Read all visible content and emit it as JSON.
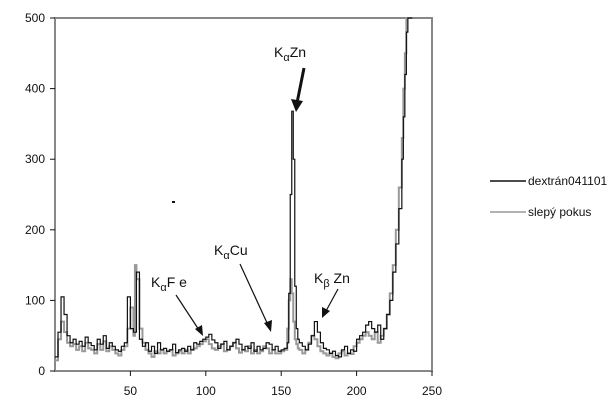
{
  "chart_data": {
    "type": "line",
    "title": "",
    "xlabel": "",
    "ylabel": "",
    "xlim": [
      0,
      250
    ],
    "ylim": [
      0,
      500
    ],
    "xticks": [
      50,
      100,
      150,
      200,
      250
    ],
    "yticks": [
      0,
      100,
      200,
      300,
      400,
      500
    ],
    "grid": false,
    "legend_position": "right",
    "series": [
      {
        "name": "dextrán041101",
        "color": "#111111",
        "x": [
          0,
          2,
          4,
          6,
          8,
          10,
          12,
          14,
          16,
          18,
          20,
          22,
          24,
          26,
          28,
          30,
          32,
          34,
          36,
          38,
          40,
          42,
          44,
          46,
          48,
          50,
          52,
          54,
          56,
          58,
          60,
          62,
          64,
          66,
          68,
          70,
          72,
          74,
          76,
          78,
          80,
          82,
          84,
          86,
          88,
          90,
          92,
          94,
          96,
          98,
          100,
          102,
          104,
          106,
          108,
          110,
          112,
          114,
          116,
          118,
          120,
          122,
          124,
          126,
          128,
          130,
          132,
          134,
          136,
          138,
          140,
          142,
          144,
          146,
          148,
          150,
          152,
          154,
          155,
          156,
          157,
          158,
          159,
          160,
          161,
          162,
          164,
          166,
          168,
          170,
          172,
          174,
          176,
          178,
          180,
          182,
          184,
          186,
          188,
          190,
          192,
          194,
          196,
          198,
          200,
          202,
          204,
          206,
          208,
          210,
          212,
          214,
          216,
          218,
          220,
          222,
          224,
          226,
          228,
          230,
          231,
          232,
          233,
          234,
          235,
          236,
          237
        ],
        "y": [
          20,
          55,
          105,
          80,
          50,
          40,
          45,
          38,
          42,
          35,
          48,
          40,
          36,
          30,
          45,
          38,
          50,
          32,
          40,
          35,
          30,
          28,
          35,
          40,
          105,
          60,
          55,
          140,
          45,
          35,
          40,
          28,
          35,
          25,
          40,
          30,
          32,
          28,
          30,
          38,
          26,
          30,
          32,
          28,
          35,
          30,
          40,
          38,
          42,
          45,
          48,
          52,
          44,
          40,
          32,
          38,
          42,
          30,
          35,
          40,
          45,
          38,
          30,
          35,
          32,
          40,
          28,
          35,
          30,
          32,
          40,
          38,
          30,
          35,
          28,
          30,
          32,
          40,
          110,
          250,
          368,
          300,
          120,
          60,
          45,
          40,
          35,
          30,
          38,
          50,
          70,
          55,
          40,
          32,
          30,
          25,
          28,
          22,
          20,
          30,
          35,
          25,
          30,
          28,
          45,
          50,
          55,
          65,
          70,
          60,
          55,
          65,
          45,
          60,
          80,
          100,
          140,
          180,
          230,
          300,
          360,
          420,
          480,
          500,
          500,
          500,
          500
        ]
      },
      {
        "name": "slepý pokus",
        "color": "#999999",
        "x": [
          0,
          2,
          4,
          6,
          8,
          10,
          12,
          14,
          16,
          18,
          20,
          22,
          24,
          26,
          28,
          30,
          32,
          34,
          36,
          38,
          40,
          42,
          44,
          46,
          48,
          50,
          52,
          53,
          54,
          56,
          58,
          60,
          62,
          64,
          66,
          68,
          70,
          72,
          74,
          76,
          78,
          80,
          82,
          84,
          86,
          88,
          90,
          92,
          94,
          96,
          98,
          100,
          102,
          104,
          106,
          108,
          110,
          112,
          114,
          116,
          118,
          120,
          122,
          124,
          126,
          128,
          130,
          132,
          134,
          136,
          138,
          140,
          142,
          144,
          146,
          148,
          150,
          152,
          154,
          155,
          156,
          157,
          158,
          159,
          160,
          161,
          162,
          164,
          166,
          168,
          170,
          172,
          174,
          176,
          178,
          180,
          182,
          184,
          186,
          188,
          190,
          192,
          194,
          196,
          198,
          200,
          202,
          204,
          206,
          208,
          210,
          212,
          214,
          216,
          218,
          220,
          222,
          224,
          226,
          228,
          230,
          231,
          232,
          233,
          234,
          235,
          236,
          237
        ],
        "y": [
          15,
          45,
          70,
          55,
          40,
          35,
          38,
          30,
          35,
          28,
          40,
          32,
          30,
          25,
          38,
          30,
          42,
          28,
          35,
          30,
          25,
          22,
          30,
          35,
          60,
          90,
          50,
          150,
          130,
          60,
          40,
          30,
          25,
          20,
          28,
          25,
          30,
          25,
          28,
          30,
          22,
          25,
          28,
          25,
          30,
          25,
          30,
          32,
          35,
          38,
          42,
          45,
          38,
          32,
          30,
          35,
          38,
          28,
          30,
          35,
          40,
          32,
          26,
          30,
          28,
          35,
          25,
          30,
          25,
          28,
          35,
          32,
          25,
          30,
          25,
          25,
          28,
          30,
          60,
          100,
          130,
          110,
          70,
          45,
          38,
          32,
          30,
          25,
          30,
          40,
          50,
          45,
          35,
          28,
          25,
          22,
          25,
          20,
          18,
          25,
          28,
          22,
          25,
          24,
          35,
          40,
          45,
          50,
          55,
          50,
          45,
          55,
          40,
          50,
          60,
          80,
          110,
          150,
          200,
          260,
          330,
          400,
          450,
          500,
          500,
          500,
          500,
          500
        ]
      }
    ],
    "legend": [
      "dextrán041101",
      "slepý pokus"
    ],
    "annotations": [
      {
        "main": "K",
        "sub": "α",
        "rest": "Zn"
      },
      {
        "main": "K",
        "sub": "α",
        "rest": "Cu"
      },
      {
        "main": "K",
        "sub": "α",
        "rest": "F e"
      },
      {
        "main": "K",
        "sub": "β",
        "rest": " Zn"
      }
    ]
  }
}
